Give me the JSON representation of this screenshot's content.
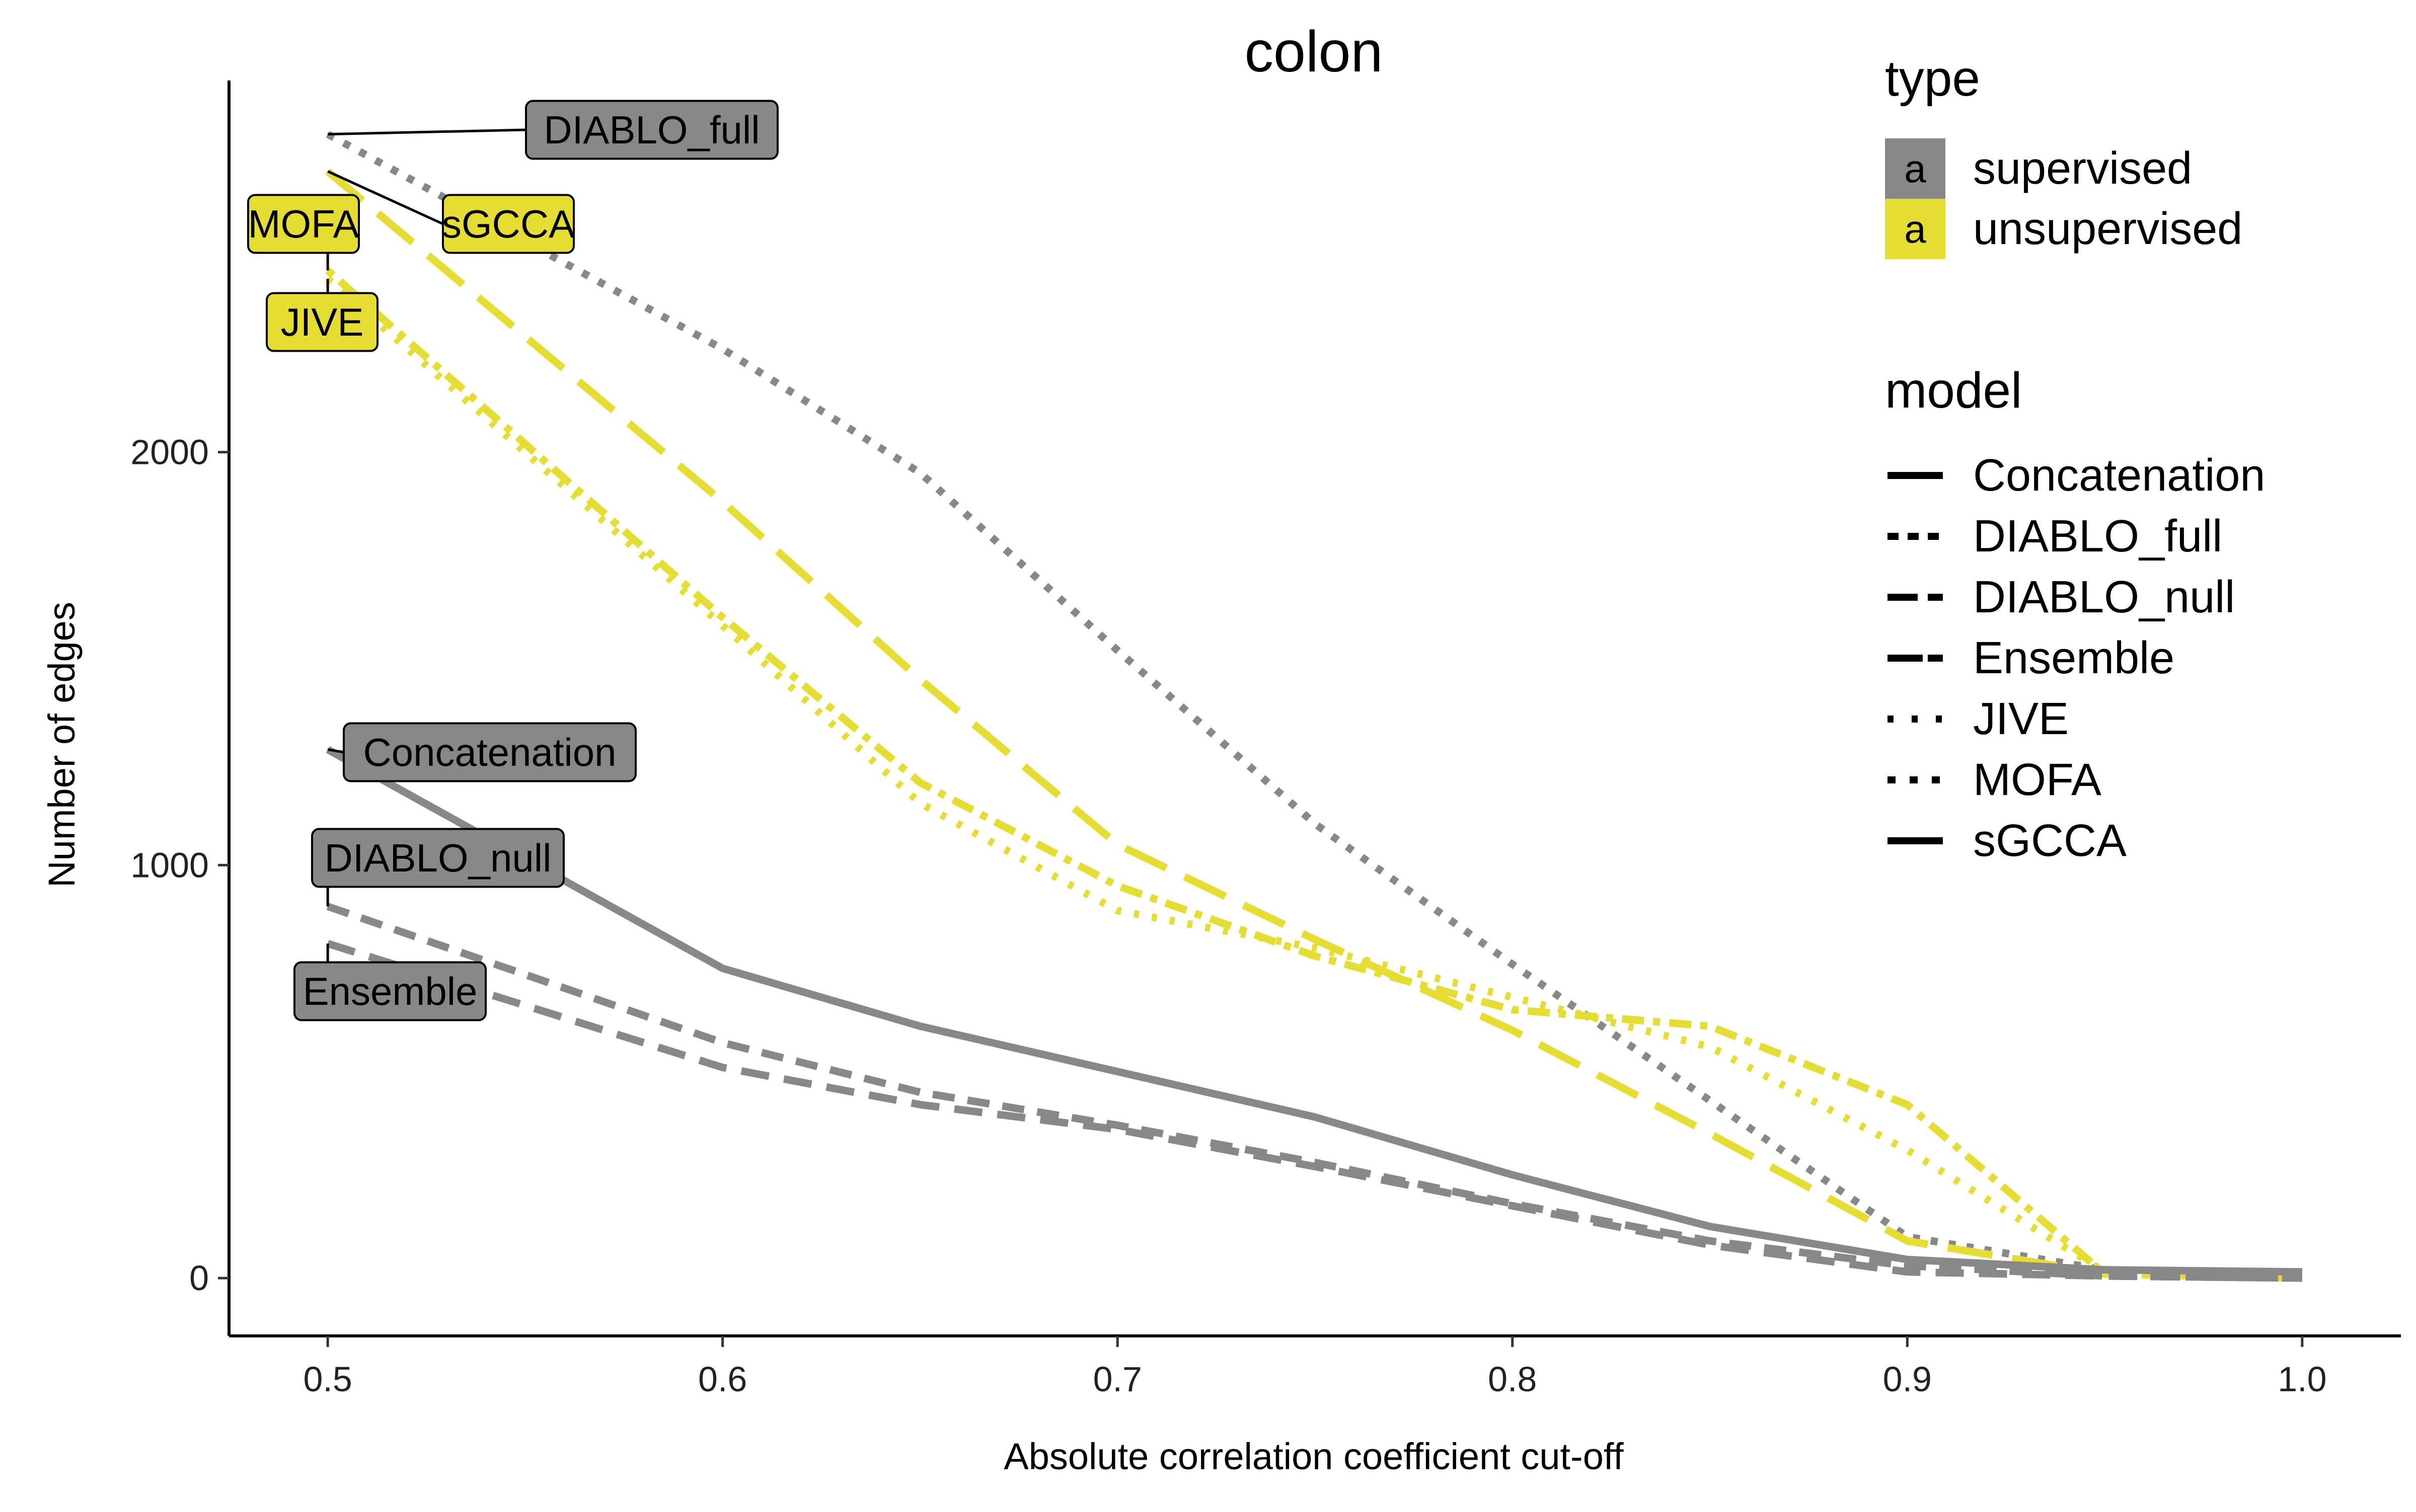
{
  "chart_data": {
    "type": "line",
    "title": "colon",
    "xlabel": "Absolute correlation coefficient cut-off",
    "ylabel": "Number of edges",
    "xlim": [
      0.475,
      1.025
    ],
    "ylim": [
      -140,
      2900
    ],
    "x_ticks": [
      "0.5",
      "0.6",
      "0.7",
      "0.8",
      "0.9",
      "1.0"
    ],
    "y_ticks": [
      "0",
      "1000",
      "2000"
    ],
    "grid": false,
    "x": [
      0.5,
      0.6,
      0.65,
      0.7,
      0.75,
      0.8,
      0.85,
      0.9,
      0.95,
      1.0
    ],
    "colors": {
      "supervised": "#888888",
      "unsupervised": "#e6dd32"
    },
    "series": [
      {
        "name": "DIABLO_full",
        "type": "supervised",
        "dash": "dotted-heavy",
        "label": "DIABLO_full",
        "values": [
          2770,
          2250,
          1950,
          1520,
          1100,
          760,
          430,
          100,
          20,
          5
        ]
      },
      {
        "name": "sGCCA",
        "type": "unsupervised",
        "dash": "longdash",
        "label": "sGCCA",
        "values": [
          2680,
          1880,
          1450,
          1050,
          820,
          600,
          350,
          90,
          10,
          0
        ]
      },
      {
        "name": "MOFA",
        "type": "unsupervised",
        "dash": "dotdash",
        "label": "MOFA",
        "values": [
          2440,
          1600,
          1200,
          950,
          780,
          650,
          610,
          420,
          10,
          0
        ]
      },
      {
        "name": "JIVE",
        "type": "unsupervised",
        "dash": "dotted",
        "label": "JIVE",
        "values": [
          2420,
          1580,
          1150,
          890,
          800,
          680,
          560,
          310,
          15,
          0
        ]
      },
      {
        "name": "Concatenation",
        "type": "supervised",
        "dash": "solid",
        "label": "Concatenation",
        "values": [
          1280,
          750,
          610,
          500,
          390,
          250,
          125,
          45,
          20,
          15
        ]
      },
      {
        "name": "DIABLO_null",
        "type": "supervised",
        "dash": "dashed",
        "label": "DIABLO_null",
        "values": [
          900,
          570,
          450,
          370,
          280,
          180,
          90,
          30,
          5,
          0
        ]
      },
      {
        "name": "Ensemble",
        "type": "supervised",
        "dash": "dashed2",
        "label": "Ensemble",
        "values": [
          810,
          510,
          420,
          360,
          270,
          175,
          80,
          15,
          5,
          0
        ]
      }
    ],
    "legend": {
      "placement": "top-right",
      "type_title": "type",
      "type_key_glyph": "a",
      "type_items": [
        "supervised",
        "unsupervised"
      ],
      "model_title": "model",
      "model_items": [
        "Concatenation",
        "DIABLO_full",
        "DIABLO_null",
        "Ensemble",
        "JIVE",
        "MOFA",
        "sGCCA"
      ]
    }
  }
}
